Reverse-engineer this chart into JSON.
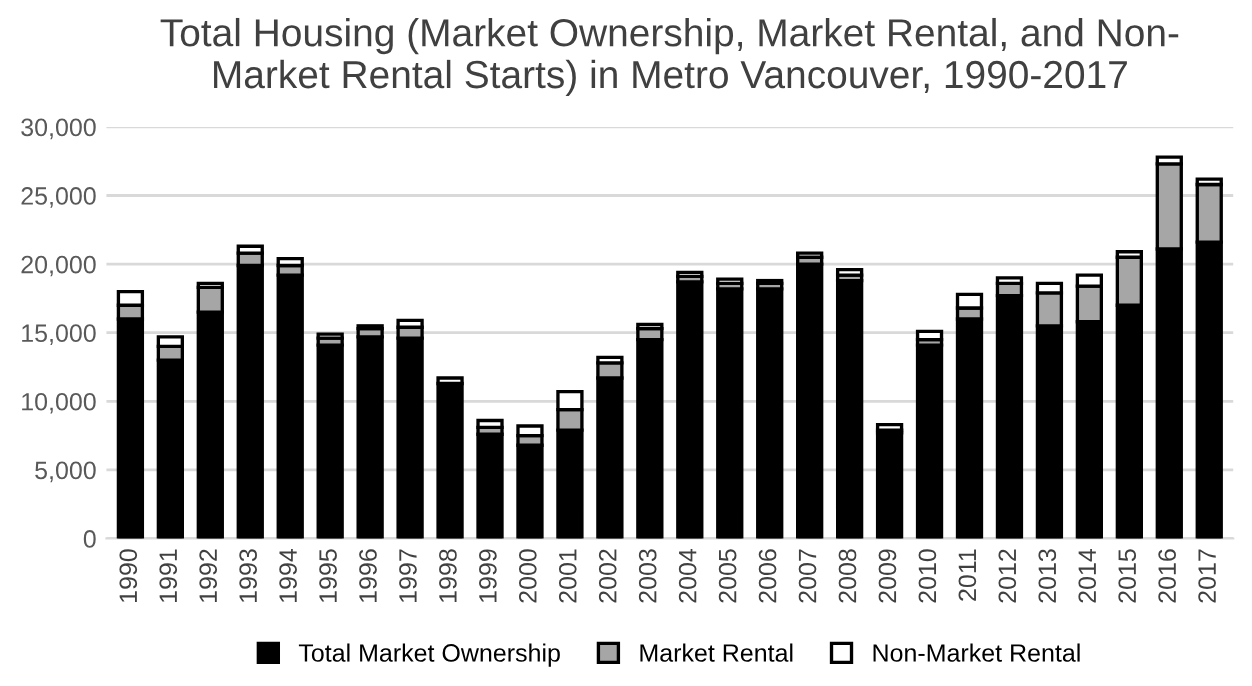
{
  "chart_data": {
    "type": "bar",
    "stacked": true,
    "title": "Total Housing (Market Ownership, Market Rental, and Non-\nMarket Rental Starts) in Metro Vancouver, 1990-2017",
    "categories": [
      "1990",
      "1991",
      "1992",
      "1993",
      "1994",
      "1995",
      "1996",
      "1997",
      "1998",
      "1999",
      "2000",
      "2001",
      "2002",
      "2003",
      "2004",
      "2005",
      "2006",
      "2007",
      "2008",
      "2009",
      "2010",
      "2011",
      "2012",
      "2013",
      "2014",
      "2015",
      "2016",
      "2017"
    ],
    "series": [
      {
        "name": "Total Market Ownership",
        "color": "#000000",
        "values": [
          16000,
          13000,
          16500,
          19900,
          19200,
          14100,
          14700,
          14600,
          11300,
          7600,
          6800,
          7900,
          11700,
          14500,
          18700,
          18200,
          18200,
          20000,
          18800,
          7700,
          14100,
          16000,
          17700,
          15500,
          15800,
          17000,
          21100,
          21600
        ]
      },
      {
        "name": "Market Rental",
        "color": "#a6a6a6",
        "values": [
          1000,
          1000,
          1800,
          900,
          700,
          500,
          600,
          800,
          null,
          500,
          700,
          1500,
          1100,
          800,
          400,
          400,
          400,
          500,
          400,
          200,
          400,
          800,
          900,
          2400,
          2600,
          3500,
          6200,
          4200
        ]
      },
      {
        "name": "Non-Market Rental",
        "color": "#ffffff",
        "values": [
          1000,
          700,
          300,
          500,
          500,
          300,
          200,
          500,
          400,
          500,
          700,
          1300,
          400,
          300,
          300,
          300,
          200,
          300,
          400,
          400,
          600,
          1000,
          400,
          700,
          800,
          400,
          500,
          400
        ]
      }
    ],
    "ylim": [
      0,
      30000
    ],
    "yticks": [
      {
        "value": 0,
        "label": "0"
      },
      {
        "value": 5000,
        "label": "5,000"
      },
      {
        "value": 10000,
        "label": "10,000"
      },
      {
        "value": 15000,
        "label": "15,000"
      },
      {
        "value": 20000,
        "label": "20,000"
      },
      {
        "value": 25000,
        "label": "25,000"
      },
      {
        "value": 30000,
        "label": "30,000"
      }
    ],
    "grid": "y",
    "legend": "bottom"
  }
}
